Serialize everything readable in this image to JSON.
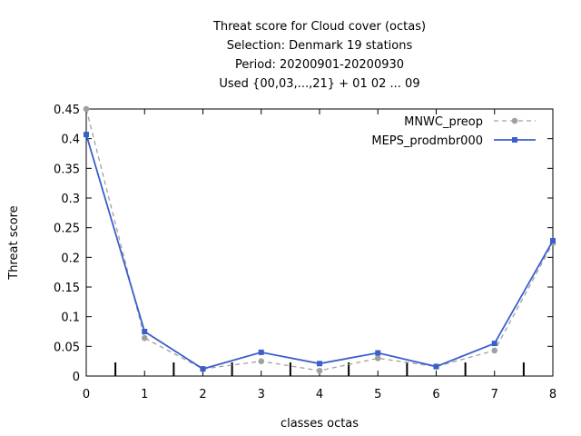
{
  "chart_data": {
    "type": "line",
    "title_lines": [
      "Threat score  for Cloud cover (octas)",
      "Selection: Denmark     19 stations",
      "Period: 20200901-20200930",
      "Used {00,03,...,21} + 01 02 ... 09"
    ],
    "xlabel": "classes octas",
    "ylabel": "Threat score",
    "x": [
      0,
      1,
      2,
      3,
      4,
      5,
      6,
      7,
      8
    ],
    "xlim": [
      0,
      8
    ],
    "ylim": [
      0,
      0.45
    ],
    "xticks": [
      "0",
      "1",
      "2",
      "3",
      "4",
      "5",
      "6",
      "7",
      "8"
    ],
    "yticks": [
      "0",
      "0.05",
      "0.1",
      "0.15",
      "0.2",
      "0.25",
      "0.3",
      "0.35",
      "0.4",
      "0.45"
    ],
    "legend_position": "top-right",
    "grid": false,
    "series": [
      {
        "name": "MNWC_preop",
        "color": "#a0a0a0",
        "style": "dashed",
        "marker": "circle",
        "values": [
          0.45,
          0.064,
          0.012,
          0.025,
          0.009,
          0.03,
          0.016,
          0.043,
          0.224
        ]
      },
      {
        "name": "MEPS_prodmbr000",
        "color": "#3a5fcd",
        "style": "solid",
        "marker": "square",
        "values": [
          0.407,
          0.075,
          0.012,
          0.04,
          0.021,
          0.039,
          0.016,
          0.055,
          0.228
        ]
      }
    ]
  }
}
